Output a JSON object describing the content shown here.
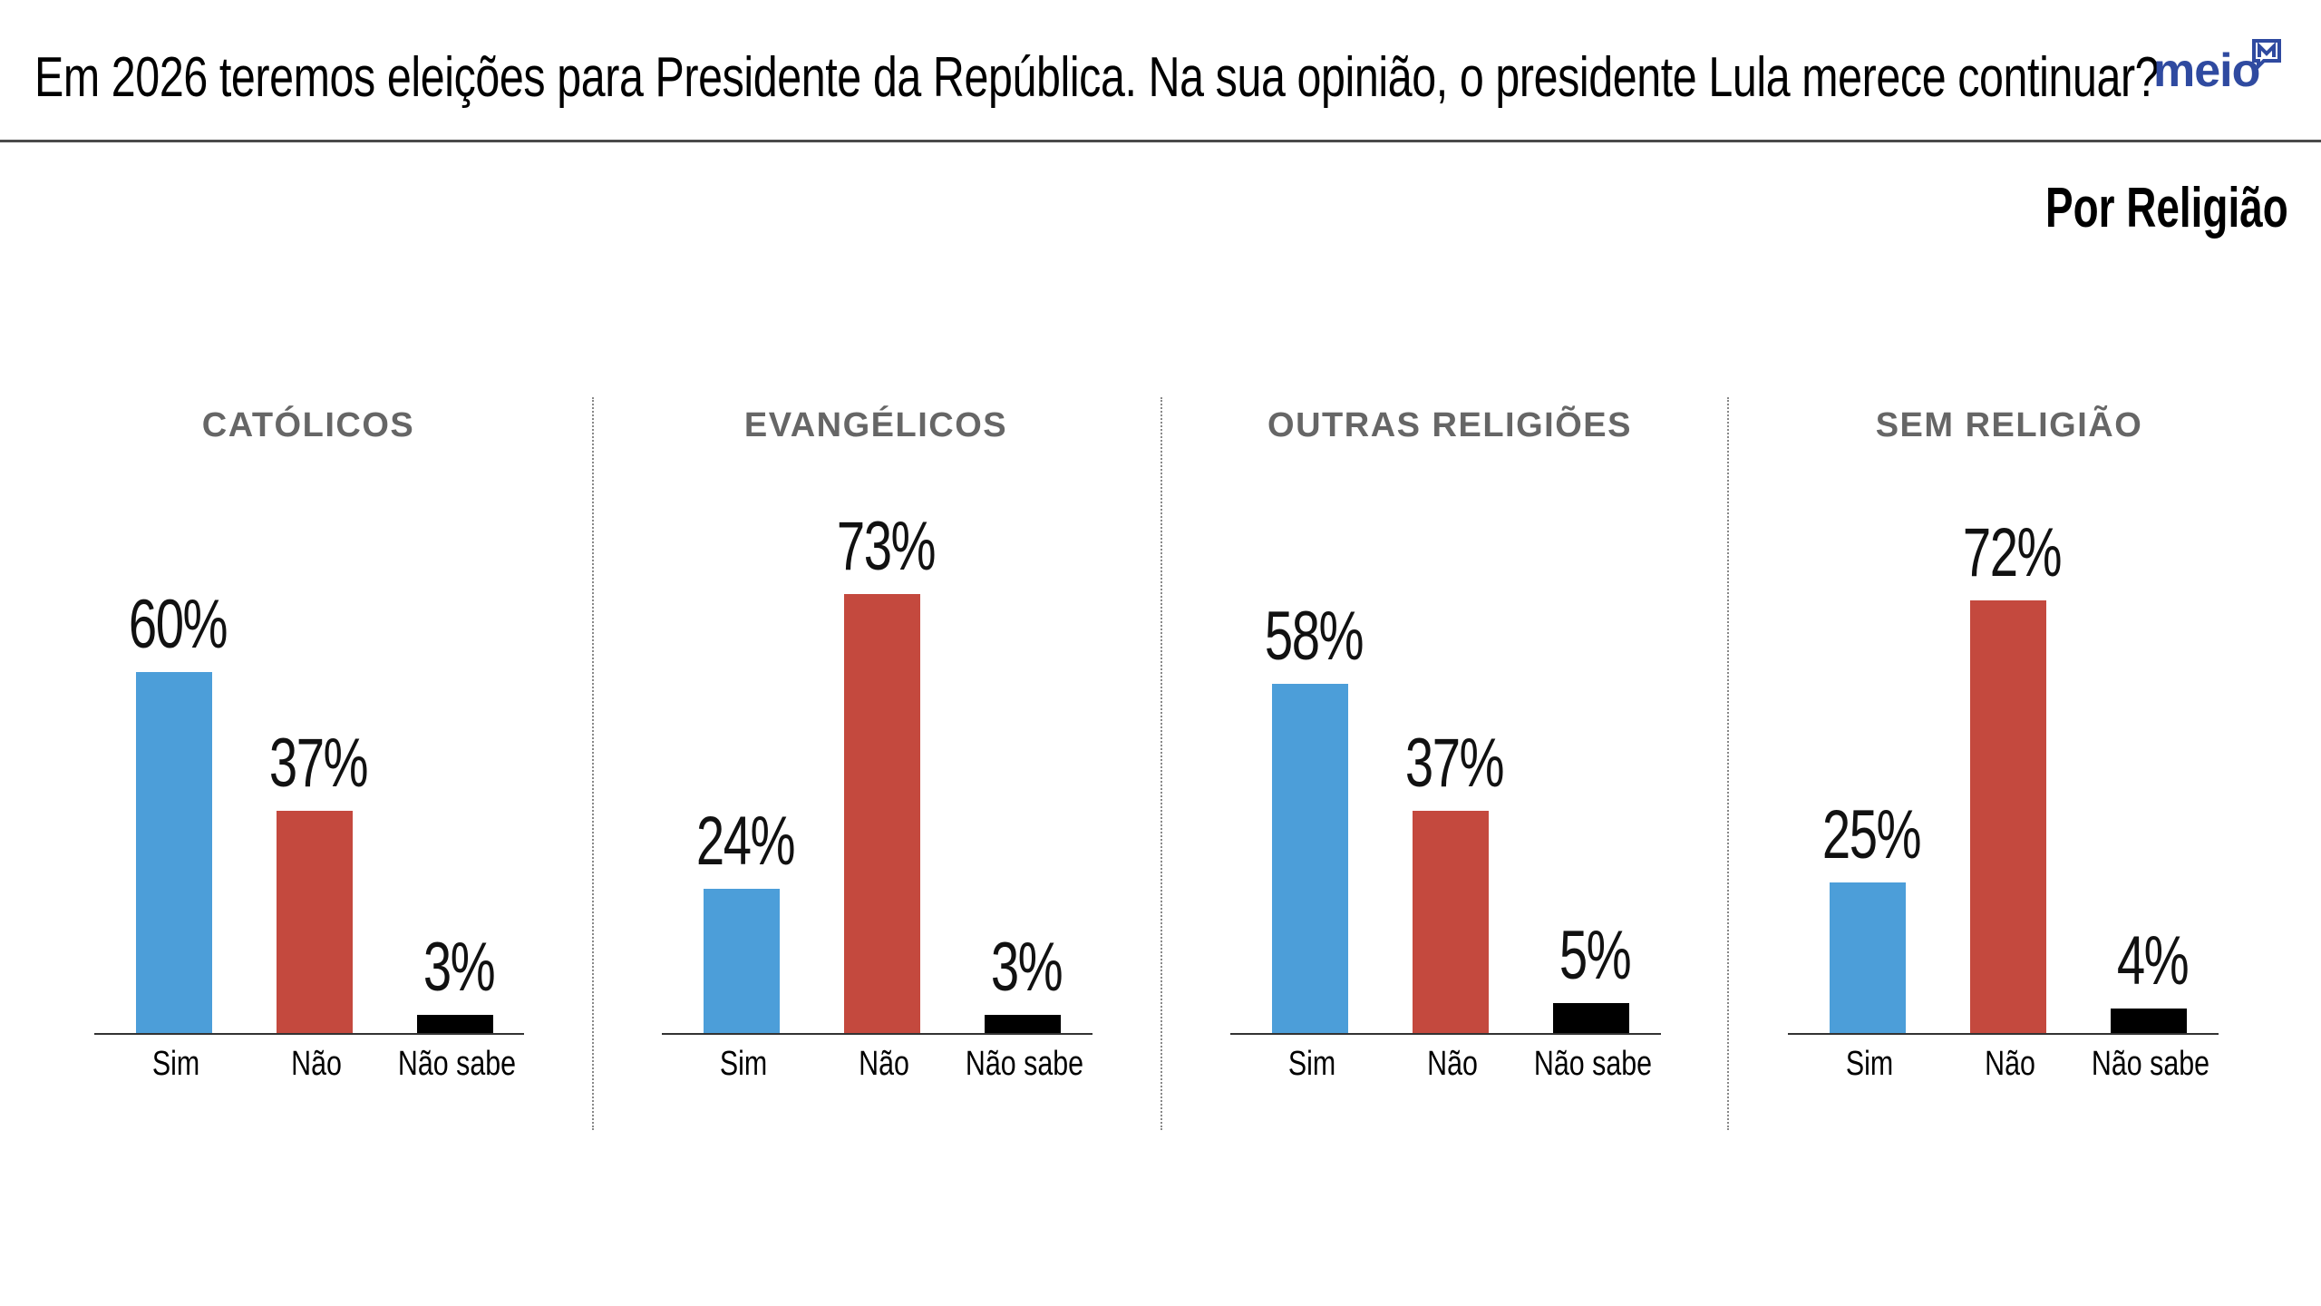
{
  "header": {
    "title": "Em 2026 teremos eleições para Presidente da República. Na sua opinião, o presidente Lula merece continuar?",
    "logo_text": "meio",
    "logo_icon": "speech-bubble-m-icon"
  },
  "subtitle": "Por Religião",
  "colors": {
    "Sim": "#4c9ed9",
    "Não": "#c4493e",
    "Não sabe": "#000000",
    "logo": "#2f4aa0"
  },
  "chart_data": [
    {
      "type": "bar",
      "title": "CATÓLICOS",
      "categories": [
        "Sim",
        "Não",
        "Não sabe"
      ],
      "values": [
        60,
        37,
        3
      ],
      "labels": [
        "60%",
        "37%",
        "3%"
      ],
      "ylim": [
        0,
        100
      ],
      "grid": false
    },
    {
      "type": "bar",
      "title": "EVANGÉLICOS",
      "categories": [
        "Sim",
        "Não",
        "Não sabe"
      ],
      "values": [
        24,
        73,
        3
      ],
      "labels": [
        "24%",
        "73%",
        "3%"
      ],
      "ylim": [
        0,
        100
      ],
      "grid": false
    },
    {
      "type": "bar",
      "title": "OUTRAS RELIGIÕES",
      "categories": [
        "Sim",
        "Não",
        "Não sabe"
      ],
      "values": [
        58,
        37,
        5
      ],
      "labels": [
        "58%",
        "37%",
        "5%"
      ],
      "ylim": [
        0,
        100
      ],
      "grid": false
    },
    {
      "type": "bar",
      "title": "SEM RELIGIÃO",
      "categories": [
        "Sim",
        "Não",
        "Não sabe"
      ],
      "values": [
        25,
        72,
        4
      ],
      "labels": [
        "25%",
        "72%",
        "4%"
      ],
      "ylim": [
        0,
        100
      ],
      "grid": false
    }
  ]
}
